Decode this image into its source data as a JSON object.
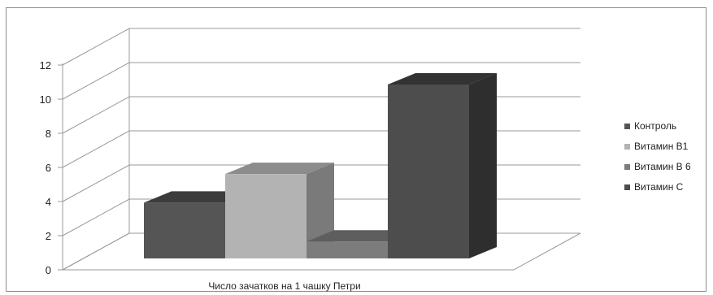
{
  "chart_data": {
    "type": "bar",
    "categories": [
      "Число зачатков на 1 чашку Петри"
    ],
    "series": [
      {
        "name": "Контроль",
        "values": [
          3.3
        ],
        "color": "#555555",
        "top_color": "#3c3c3c",
        "side_color": "#333333"
      },
      {
        "name": "Витамин В1",
        "values": [
          5.0
        ],
        "color": "#b3b3b3",
        "top_color": "#8c8c8c",
        "side_color": "#7a7a7a"
      },
      {
        "name": "Витамин В 6",
        "values": [
          1.0
        ],
        "color": "#7c7c7c",
        "top_color": "#5e5e5e",
        "side_color": "#5a5a5a"
      },
      {
        "name": "Витамин С",
        "values": [
          10.3
        ],
        "color": "#4d4d4d",
        "top_color": "#333333",
        "side_color": "#2e2e2e"
      }
    ],
    "yticks": [
      0,
      2,
      4,
      6,
      8,
      10,
      12
    ],
    "ylim": [
      0,
      12
    ],
    "grid": true,
    "legend_position": "right",
    "title": "",
    "xlabel": "",
    "ylabel": ""
  }
}
